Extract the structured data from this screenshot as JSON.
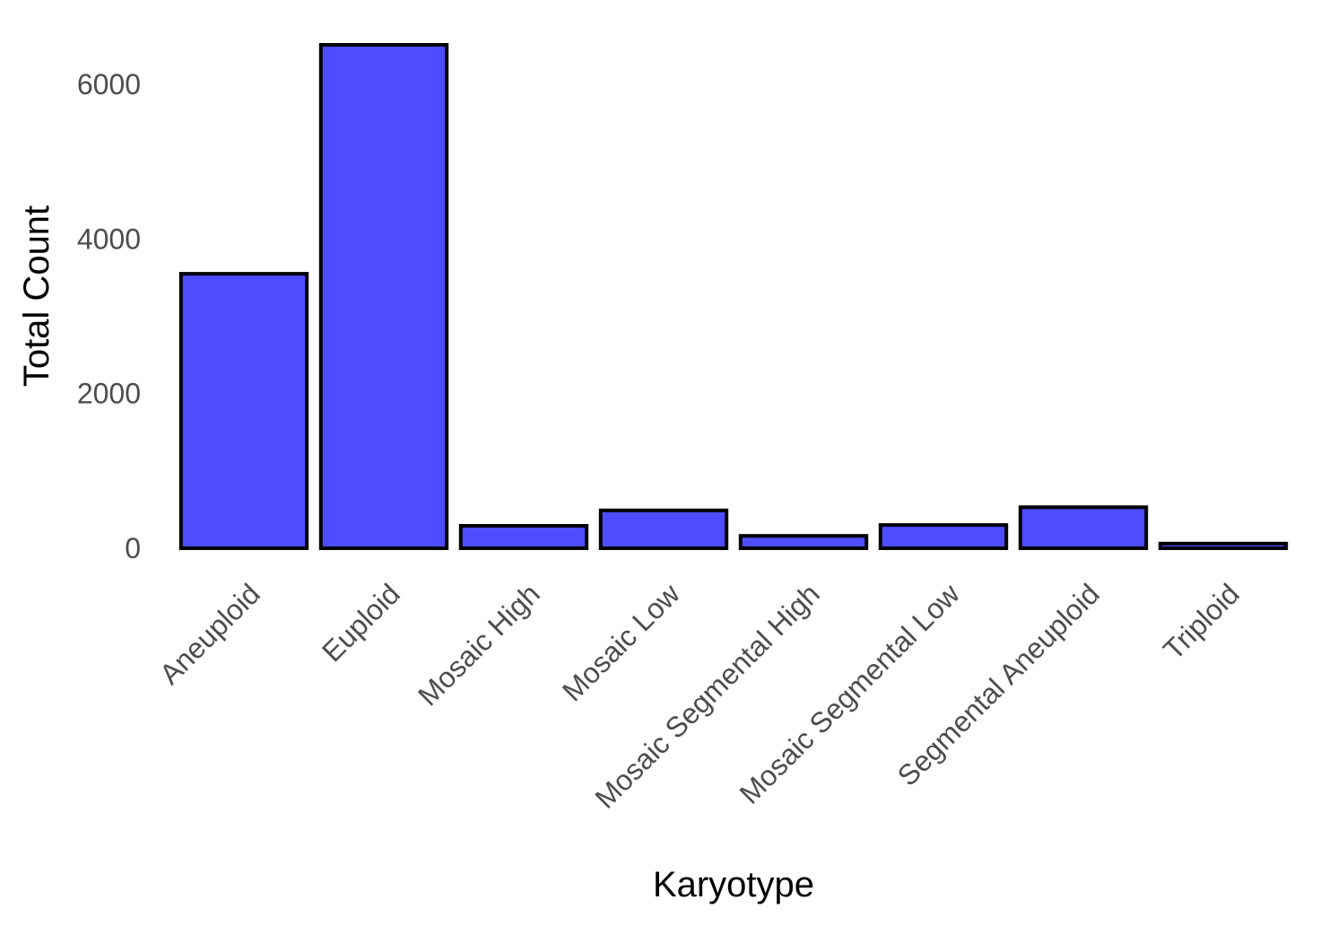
{
  "chart_data": {
    "type": "bar",
    "title": "",
    "xlabel": "Karyotype",
    "ylabel": "Total Count",
    "categories": [
      "Aneuploid",
      "Euploid",
      "Mosaic High",
      "Mosaic Low",
      "Mosaic Segmental High",
      "Mosaic Segmental Low",
      "Segmental Aneuploid",
      "Triploid"
    ],
    "values": [
      3550,
      6510,
      290,
      490,
      160,
      300,
      530,
      60
    ],
    "yticks": [
      0,
      2000,
      4000,
      6000
    ],
    "ytick_labels": [
      "0",
      "2000",
      "4000",
      "6000"
    ],
    "ylim": [
      0,
      6510
    ],
    "grid": false,
    "legend": "none",
    "bar_fill": "#4d4dff",
    "bar_outline": "#000000"
  }
}
